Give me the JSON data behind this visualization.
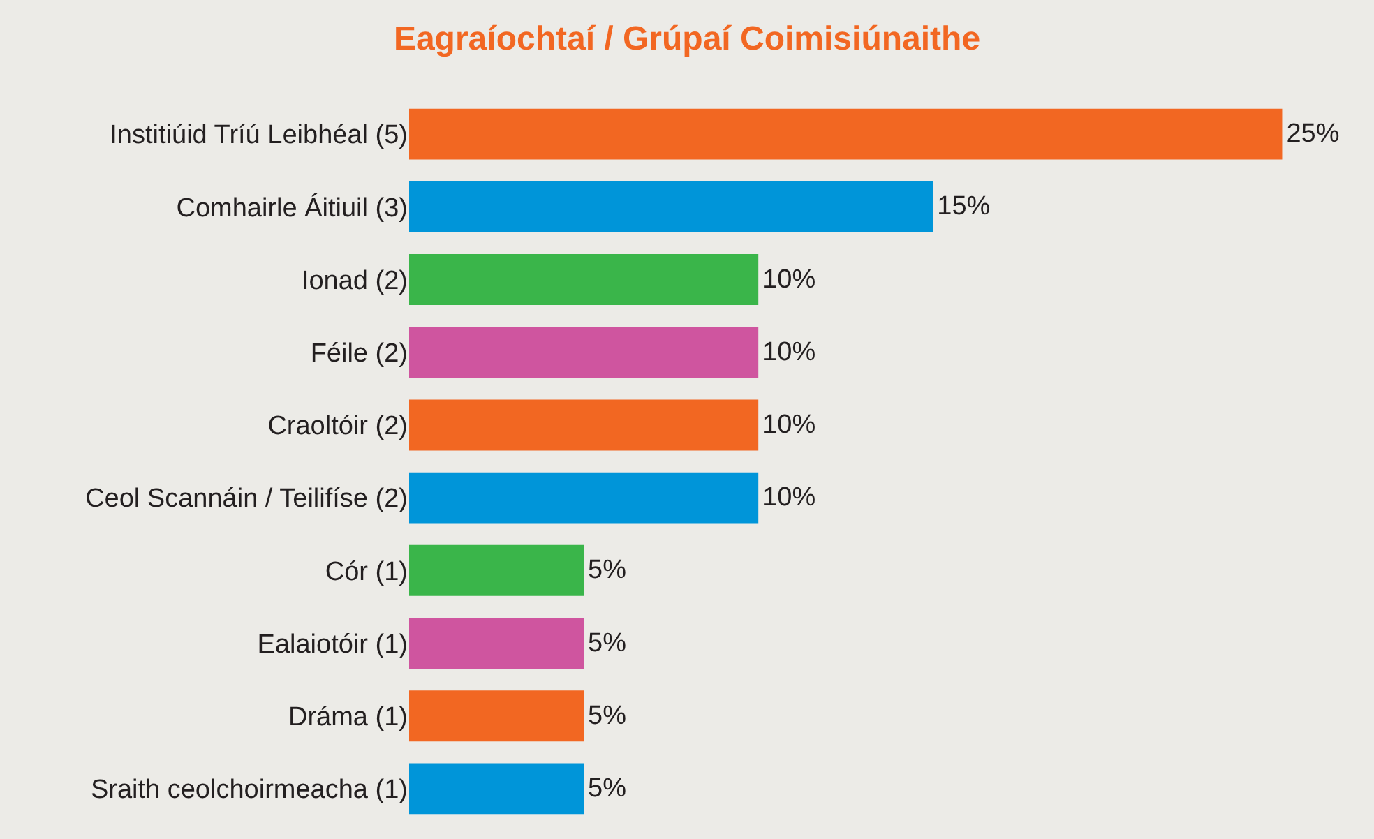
{
  "chart_data": {
    "type": "bar",
    "orientation": "horizontal",
    "title": "Eagraíochtaí / Grúpaí Coimisiúnaithe",
    "categories": [
      "Institiúid Tríú Leibhéal (5)",
      "Comhairle Áitiuil (3)",
      "Ionad (2)",
      "Féile (2)",
      "Craoltóir (2)",
      "Ceol Scannáin / Teilifíse (2)",
      "Cór (1)",
      "Ealaiotóir (1)",
      "Dráma (1)",
      "Sraith ceolchoirmeacha (1)"
    ],
    "values": [
      25,
      15,
      10,
      10,
      10,
      10,
      5,
      5,
      5,
      5
    ],
    "value_labels": [
      "25%",
      "15%",
      "10%",
      "10%",
      "10%",
      "10%",
      "5%",
      "5%",
      "5%",
      "5%"
    ],
    "colors": [
      "#f26722",
      "#0095d9",
      "#3ab54a",
      "#cf559f",
      "#f26722",
      "#0095d9",
      "#3ab54a",
      "#cf559f",
      "#f26722",
      "#0095d9"
    ],
    "grid": false,
    "legend": false
  }
}
